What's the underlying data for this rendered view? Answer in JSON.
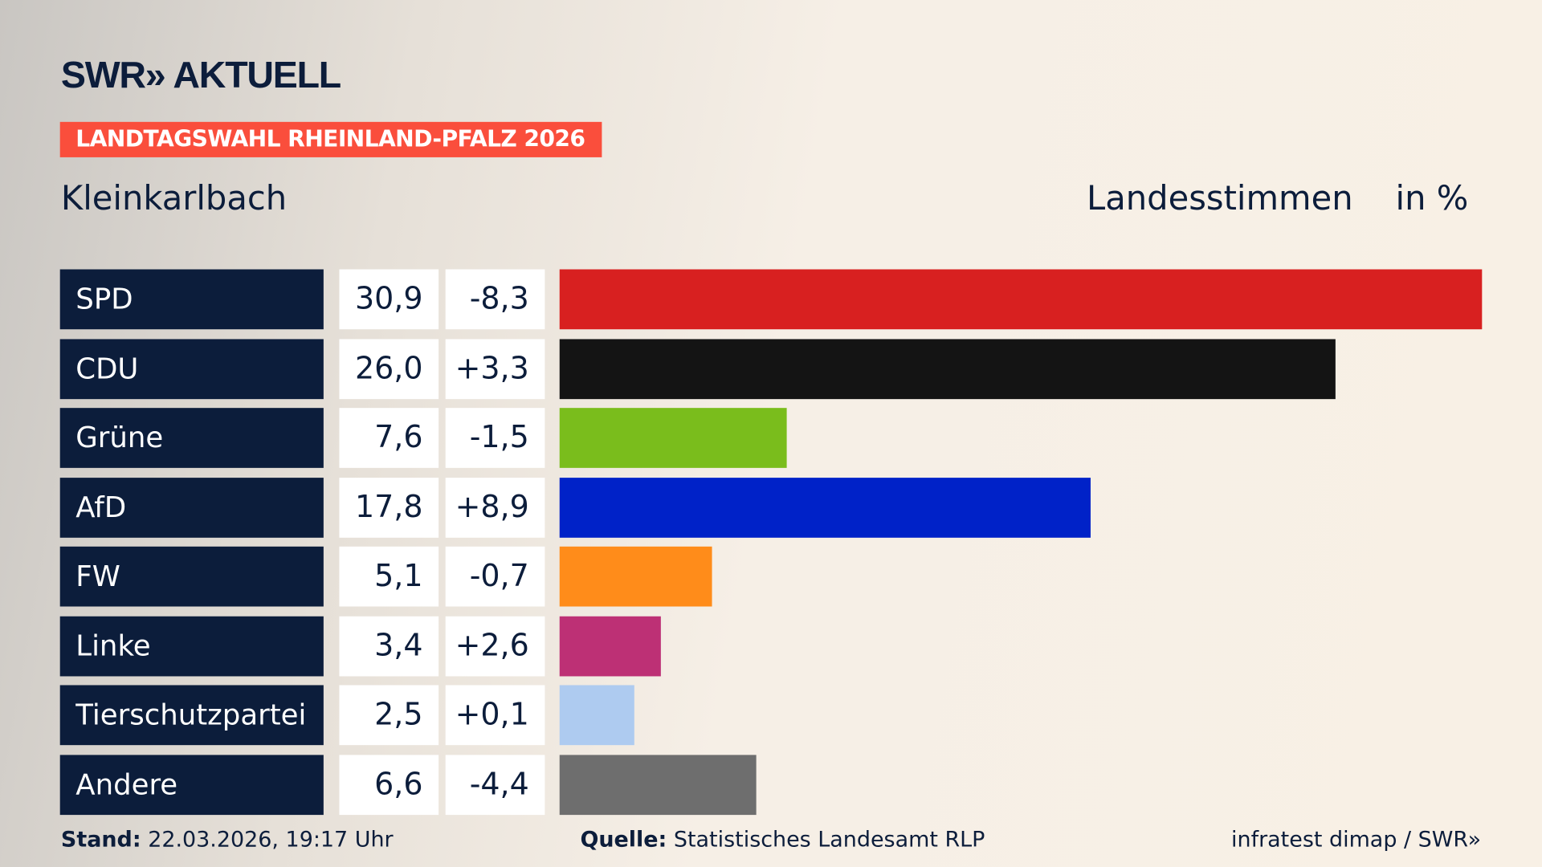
{
  "header": {
    "logo": "SWR» AKTUELL",
    "tag": "LANDTAGSWAHL RHEINLAND-PFALZ 2026",
    "place": "Kleinkarlbach",
    "metric": "Landesstimmen",
    "unit": "in %"
  },
  "chart_data": {
    "type": "bar",
    "orientation": "horizontal",
    "categories": [
      "SPD",
      "CDU",
      "Grüne",
      "AfD",
      "FW",
      "Linke",
      "Tierschutzpartei",
      "Andere"
    ],
    "values": [
      "30,9",
      "26,0",
      "7,6",
      "17,8",
      "5,1",
      "3,4",
      "2,5",
      "6,6"
    ],
    "numeric_values": [
      30.9,
      26.0,
      7.6,
      17.8,
      5.1,
      3.4,
      2.5,
      6.6
    ],
    "diffs": [
      "-8,3",
      "+3,3",
      "-1,5",
      "+8,9",
      "-0,7",
      "+2,6",
      "+0,1",
      "-4,4"
    ],
    "colors": [
      "#d82020",
      "#141414",
      "#7abd1c",
      "#0022c8",
      "#ff8c1a",
      "#bd3075",
      "#aecbf0",
      "#6e6e6e"
    ]
  },
  "footer": {
    "stand_label": "Stand:",
    "stand": "22.03.2026, 19:17 Uhr",
    "source_label": "Quelle:",
    "source": "Statistisches Landesamt RLP",
    "credit": "infratest dimap / SWR»"
  }
}
